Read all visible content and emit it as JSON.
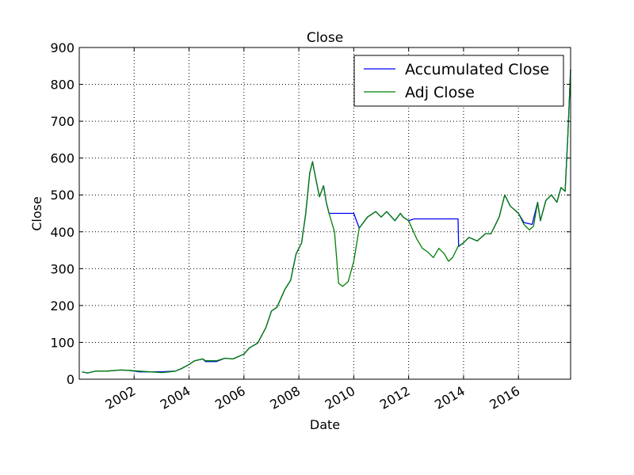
{
  "chart_data": {
    "type": "line",
    "title": "Close",
    "xlabel": "Date",
    "ylabel": "Close",
    "xlim": [
      2000.0,
      2017.9
    ],
    "ylim": [
      0,
      900
    ],
    "x_ticks": [
      2002,
      2004,
      2006,
      2008,
      2010,
      2012,
      2014,
      2016
    ],
    "x_tick_labels": [
      "2002",
      "2004",
      "2006",
      "2008",
      "2010",
      "2012",
      "2014",
      "2016"
    ],
    "y_ticks": [
      0,
      100,
      200,
      300,
      400,
      500,
      600,
      700,
      800,
      900
    ],
    "y_tick_labels": [
      "0",
      "100",
      "200",
      "300",
      "400",
      "500",
      "600",
      "700",
      "800",
      "900"
    ],
    "grid": true,
    "legend_position": "top-right",
    "series": [
      {
        "name": "Accumulated Close",
        "color": "#0000ff",
        "points": [
          [
            2000.1,
            20
          ],
          [
            2000.3,
            17
          ],
          [
            2000.6,
            22
          ],
          [
            2001.0,
            22
          ],
          [
            2001.5,
            25
          ],
          [
            2001.8,
            24
          ],
          [
            2002.2,
            20
          ],
          [
            2003.0,
            20
          ],
          [
            2003.5,
            22
          ],
          [
            2003.7,
            28
          ],
          [
            2004.0,
            40
          ],
          [
            2004.2,
            50
          ],
          [
            2004.5,
            55
          ],
          [
            2004.6,
            48
          ],
          [
            2005.0,
            48
          ],
          [
            2005.3,
            57
          ],
          [
            2005.6,
            55
          ],
          [
            2006.0,
            68
          ],
          [
            2006.2,
            85
          ],
          [
            2006.5,
            98
          ],
          [
            2006.8,
            140
          ],
          [
            2007.0,
            185
          ],
          [
            2007.2,
            195
          ],
          [
            2007.5,
            245
          ],
          [
            2007.7,
            268
          ],
          [
            2007.9,
            340
          ],
          [
            2008.1,
            370
          ],
          [
            2008.25,
            450
          ],
          [
            2008.4,
            560
          ],
          [
            2008.5,
            590
          ],
          [
            2008.6,
            550
          ],
          [
            2008.75,
            495
          ],
          [
            2008.9,
            525
          ],
          [
            2009.0,
            480
          ],
          [
            2009.1,
            450
          ],
          [
            2009.2,
            450
          ],
          [
            2009.6,
            450
          ],
          [
            2010.0,
            450
          ],
          [
            2010.2,
            410
          ],
          [
            2010.5,
            440
          ],
          [
            2010.8,
            455
          ],
          [
            2011.0,
            440
          ],
          [
            2011.2,
            455
          ],
          [
            2011.5,
            430
          ],
          [
            2011.7,
            450
          ],
          [
            2011.8,
            440
          ],
          [
            2012.0,
            430
          ],
          [
            2012.2,
            435
          ],
          [
            2012.6,
            435
          ],
          [
            2013.0,
            435
          ],
          [
            2013.5,
            435
          ],
          [
            2013.8,
            435
          ],
          [
            2013.82,
            360
          ],
          [
            2014.0,
            370
          ],
          [
            2014.2,
            385
          ],
          [
            2014.5,
            375
          ],
          [
            2014.8,
            395
          ],
          [
            2015.0,
            395
          ],
          [
            2015.3,
            440
          ],
          [
            2015.5,
            500
          ],
          [
            2015.7,
            470
          ],
          [
            2016.0,
            450
          ],
          [
            2016.2,
            425
          ],
          [
            2016.5,
            420
          ],
          [
            2016.7,
            480
          ],
          [
            2016.8,
            430
          ],
          [
            2017.0,
            485
          ],
          [
            2017.2,
            500
          ],
          [
            2017.4,
            480
          ],
          [
            2017.55,
            520
          ],
          [
            2017.7,
            510
          ],
          [
            2017.8,
            660
          ],
          [
            2017.9,
            840
          ]
        ]
      },
      {
        "name": "Adj Close",
        "color": "#008000",
        "points": [
          [
            2000.1,
            20
          ],
          [
            2000.3,
            17
          ],
          [
            2000.6,
            22
          ],
          [
            2001.0,
            22
          ],
          [
            2001.5,
            25
          ],
          [
            2001.8,
            24
          ],
          [
            2002.2,
            22
          ],
          [
            2002.6,
            20
          ],
          [
            2003.0,
            18
          ],
          [
            2003.3,
            20
          ],
          [
            2003.5,
            22
          ],
          [
            2003.7,
            28
          ],
          [
            2004.0,
            40
          ],
          [
            2004.2,
            50
          ],
          [
            2004.5,
            55
          ],
          [
            2004.6,
            50
          ],
          [
            2005.0,
            50
          ],
          [
            2005.3,
            57
          ],
          [
            2005.6,
            55
          ],
          [
            2006.0,
            68
          ],
          [
            2006.2,
            85
          ],
          [
            2006.5,
            98
          ],
          [
            2006.8,
            140
          ],
          [
            2007.0,
            185
          ],
          [
            2007.2,
            195
          ],
          [
            2007.5,
            245
          ],
          [
            2007.7,
            268
          ],
          [
            2007.9,
            340
          ],
          [
            2008.1,
            370
          ],
          [
            2008.25,
            450
          ],
          [
            2008.4,
            560
          ],
          [
            2008.5,
            590
          ],
          [
            2008.6,
            550
          ],
          [
            2008.75,
            495
          ],
          [
            2008.9,
            525
          ],
          [
            2009.0,
            480
          ],
          [
            2009.1,
            450
          ],
          [
            2009.3,
            400
          ],
          [
            2009.45,
            260
          ],
          [
            2009.6,
            252
          ],
          [
            2009.8,
            265
          ],
          [
            2010.0,
            320
          ],
          [
            2010.2,
            410
          ],
          [
            2010.5,
            440
          ],
          [
            2010.8,
            455
          ],
          [
            2011.0,
            440
          ],
          [
            2011.2,
            455
          ],
          [
            2011.5,
            430
          ],
          [
            2011.7,
            450
          ],
          [
            2011.8,
            440
          ],
          [
            2012.0,
            430
          ],
          [
            2012.3,
            380
          ],
          [
            2012.5,
            355
          ],
          [
            2012.7,
            345
          ],
          [
            2012.9,
            330
          ],
          [
            2013.1,
            355
          ],
          [
            2013.3,
            340
          ],
          [
            2013.45,
            320
          ],
          [
            2013.6,
            330
          ],
          [
            2013.8,
            360
          ],
          [
            2014.0,
            370
          ],
          [
            2014.2,
            385
          ],
          [
            2014.5,
            375
          ],
          [
            2014.8,
            395
          ],
          [
            2015.0,
            395
          ],
          [
            2015.3,
            440
          ],
          [
            2015.5,
            500
          ],
          [
            2015.7,
            470
          ],
          [
            2016.0,
            450
          ],
          [
            2016.2,
            420
          ],
          [
            2016.4,
            405
          ],
          [
            2016.55,
            415
          ],
          [
            2016.7,
            480
          ],
          [
            2016.8,
            430
          ],
          [
            2017.0,
            485
          ],
          [
            2017.2,
            500
          ],
          [
            2017.4,
            480
          ],
          [
            2017.55,
            520
          ],
          [
            2017.7,
            510
          ],
          [
            2017.8,
            660
          ],
          [
            2017.9,
            840
          ]
        ]
      }
    ]
  }
}
